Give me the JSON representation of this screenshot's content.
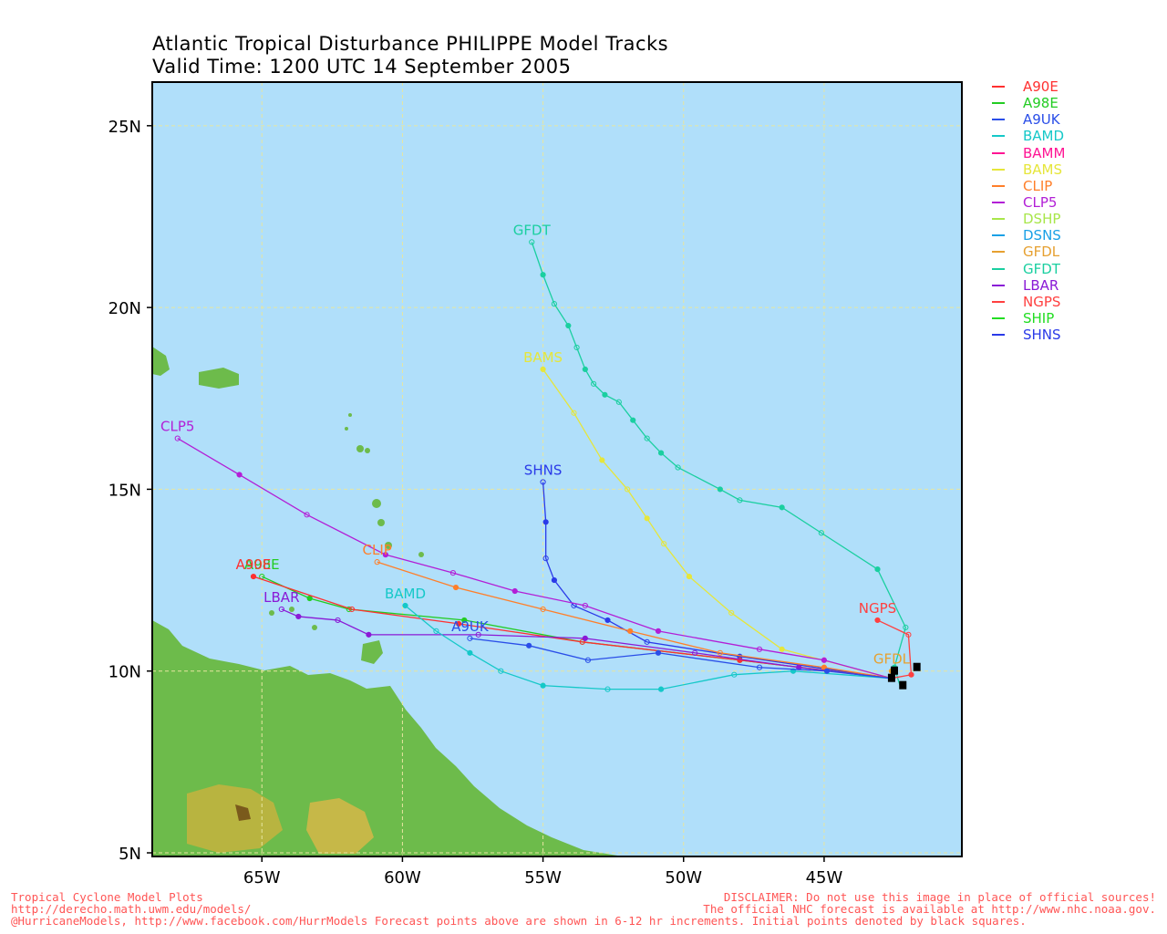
{
  "title": {
    "line1": "Atlantic Tropical Disturbance PHILIPPE Model Tracks",
    "line2": "Valid Time: 1200 UTC 14 September 2005"
  },
  "axes": {
    "lon_labels": [
      "65W",
      "60W",
      "55W",
      "50W",
      "45W"
    ],
    "lat_labels": [
      "25N",
      "20N",
      "15N",
      "10N",
      "5N"
    ]
  },
  "colors": {
    "ocean": "#b0dffa",
    "grid": "#e8e8a0",
    "land": "#66b84a"
  },
  "legend": [
    {
      "name": "A90E",
      "color": "#ff3030"
    },
    {
      "name": "A98E",
      "color": "#22cc22"
    },
    {
      "name": "A9UK",
      "color": "#2a4ee8"
    },
    {
      "name": "BAMD",
      "color": "#15c8c8"
    },
    {
      "name": "BAMM",
      "color": "#ff1493"
    },
    {
      "name": "BAMS",
      "color": "#e6e63a"
    },
    {
      "name": "CLIP",
      "color": "#ff7f2a"
    },
    {
      "name": "CLP5",
      "color": "#b21fd6"
    },
    {
      "name": "DSHP",
      "color": "#a8e64a"
    },
    {
      "name": "DSNS",
      "color": "#1aa0e6"
    },
    {
      "name": "GFDL",
      "color": "#e6a030"
    },
    {
      "name": "GFDT",
      "color": "#1acfa0"
    },
    {
      "name": "LBAR",
      "color": "#8a1ad6"
    },
    {
      "name": "NGPS",
      "color": "#ff4040"
    },
    {
      "name": "SHIP",
      "color": "#22dd22"
    },
    {
      "name": "SHNS",
      "color": "#2a3ae8"
    }
  ],
  "track_labels": {
    "GFDT": "GFDT",
    "BAMS": "BAMS",
    "SHNS": "SHNS",
    "CLP5": "CLP5",
    "CLIP": "CLIP",
    "A98E": "A98E",
    "A90E": "A90E",
    "LBAR": "LBAR",
    "BAMD": "BAMD",
    "A9UK": "A9UK",
    "NGPS": "NGPS",
    "GFDL": "GFDL"
  },
  "chart_data": {
    "type": "scatter",
    "title": "Atlantic Tropical Disturbance PHILIPPE Model Tracks",
    "subtitle": "Valid Time: 1200 UTC 14 September 2005",
    "xlim": [
      -68.9,
      -40.1
    ],
    "ylim": [
      4.9,
      26.2
    ],
    "grid": true,
    "legend_placement": "right",
    "series": [
      {
        "name": "GFDT",
        "points": [
          [
            -42.3,
            9.6
          ],
          [
            -42.5,
            10.1
          ],
          [
            -42.1,
            11.2
          ],
          [
            -43.1,
            12.8
          ],
          [
            -45.1,
            13.8
          ],
          [
            -46.5,
            14.5
          ],
          [
            -48.0,
            14.7
          ],
          [
            -48.7,
            15.0
          ],
          [
            -50.2,
            15.6
          ],
          [
            -50.8,
            16.0
          ],
          [
            -51.3,
            16.4
          ],
          [
            -51.8,
            16.9
          ],
          [
            -52.3,
            17.4
          ],
          [
            -52.8,
            17.6
          ],
          [
            -53.2,
            17.9
          ],
          [
            -53.5,
            18.3
          ],
          [
            -53.8,
            18.9
          ],
          [
            -54.1,
            19.5
          ],
          [
            -54.6,
            20.1
          ],
          [
            -55.0,
            20.9
          ],
          [
            -55.4,
            21.8
          ]
        ]
      },
      {
        "name": "BAMS",
        "points": [
          [
            -42.6,
            9.8
          ],
          [
            -46.5,
            10.6
          ],
          [
            -48.3,
            11.6
          ],
          [
            -49.8,
            12.6
          ],
          [
            -50.7,
            13.5
          ],
          [
            -51.3,
            14.2
          ],
          [
            -52.0,
            15.0
          ],
          [
            -52.9,
            15.8
          ],
          [
            -53.9,
            17.1
          ],
          [
            -55.0,
            18.3
          ]
        ]
      },
      {
        "name": "SHNS",
        "points": [
          [
            -42.6,
            9.8
          ],
          [
            -48.0,
            10.4
          ],
          [
            -51.3,
            10.8
          ],
          [
            -52.7,
            11.4
          ],
          [
            -53.9,
            11.8
          ],
          [
            -54.6,
            12.5
          ],
          [
            -54.9,
            13.1
          ],
          [
            -54.9,
            14.1
          ],
          [
            -55.0,
            15.2
          ]
        ]
      },
      {
        "name": "CLP5",
        "points": [
          [
            -42.6,
            9.8
          ],
          [
            -45.0,
            10.3
          ],
          [
            -47.3,
            10.6
          ],
          [
            -50.9,
            11.1
          ],
          [
            -53.5,
            11.8
          ],
          [
            -56.0,
            12.2
          ],
          [
            -58.2,
            12.7
          ],
          [
            -60.6,
            13.2
          ],
          [
            -63.4,
            14.3
          ],
          [
            -65.8,
            15.4
          ],
          [
            -68.0,
            16.4
          ]
        ]
      },
      {
        "name": "CLIP",
        "points": [
          [
            -42.6,
            9.8
          ],
          [
            -45.0,
            10.1
          ],
          [
            -48.7,
            10.5
          ],
          [
            -51.9,
            11.1
          ],
          [
            -55.0,
            11.7
          ],
          [
            -58.1,
            12.3
          ],
          [
            -60.9,
            13.0
          ]
        ]
      },
      {
        "name": "A98E",
        "points": [
          [
            -42.6,
            9.8
          ],
          [
            -48.0,
            10.3
          ],
          [
            -53.6,
            10.8
          ],
          [
            -57.8,
            11.4
          ],
          [
            -61.9,
            11.7
          ],
          [
            -63.3,
            12.0
          ],
          [
            -65.0,
            12.6
          ]
        ]
      },
      {
        "name": "A90E",
        "points": [
          [
            -42.6,
            9.8
          ],
          [
            -48.0,
            10.3
          ],
          [
            -53.6,
            10.8
          ],
          [
            -58.0,
            11.3
          ],
          [
            -61.8,
            11.7
          ],
          [
            -65.3,
            12.6
          ]
        ]
      },
      {
        "name": "LBAR",
        "points": [
          [
            -42.6,
            9.8
          ],
          [
            -45.9,
            10.1
          ],
          [
            -49.6,
            10.5
          ],
          [
            -53.5,
            10.9
          ],
          [
            -57.3,
            11.0
          ],
          [
            -61.2,
            11.0
          ],
          [
            -62.3,
            11.4
          ],
          [
            -63.7,
            11.5
          ],
          [
            -64.3,
            11.7
          ]
        ]
      },
      {
        "name": "BAMD",
        "points": [
          [
            -42.6,
            9.8
          ],
          [
            -46.1,
            10.0
          ],
          [
            -48.2,
            9.9
          ],
          [
            -50.8,
            9.5
          ],
          [
            -52.7,
            9.5
          ],
          [
            -55.0,
            9.6
          ],
          [
            -56.5,
            10.0
          ],
          [
            -57.6,
            10.5
          ],
          [
            -58.8,
            11.1
          ],
          [
            -59.9,
            11.8
          ]
        ]
      },
      {
        "name": "A9UK",
        "points": [
          [
            -42.6,
            9.8
          ],
          [
            -44.9,
            10.0
          ],
          [
            -47.3,
            10.1
          ],
          [
            -50.9,
            10.5
          ],
          [
            -53.4,
            10.3
          ],
          [
            -55.5,
            10.7
          ],
          [
            -57.6,
            10.9
          ]
        ]
      },
      {
        "name": "NGPS",
        "points": [
          [
            -42.6,
            9.8
          ],
          [
            -41.9,
            9.9
          ],
          [
            -42.0,
            11.0
          ],
          [
            -43.1,
            11.4
          ]
        ]
      },
      {
        "name": "GFDL",
        "points": [
          [
            -42.6,
            9.8
          ],
          [
            -42.6,
            10.0
          ]
        ]
      }
    ]
  },
  "footer": {
    "left": [
      "Tropical Cyclone Model Plots",
      "http://derecho.math.uwm.edu/models/",
      "@HurricaneModels, http://www.facebook.com/HurrModels  Forecast points above are shown in 6-12 hr increments. Initial points denoted by black squares."
    ],
    "right": [
      "DISCLAIMER: Do not use this image in place of official sources!",
      "The official NHC forecast is available at http://www.nhc.noaa.gov."
    ]
  }
}
